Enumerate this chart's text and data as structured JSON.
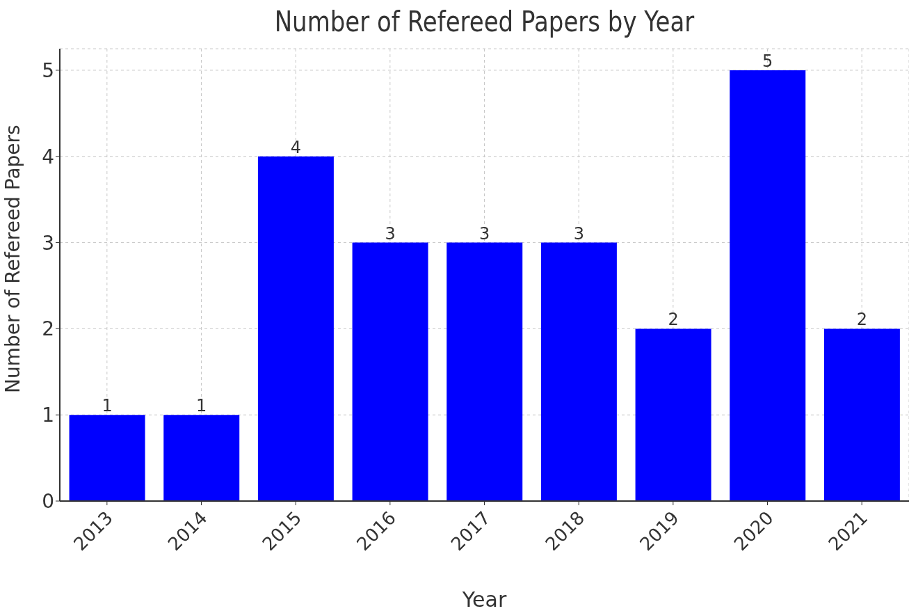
{
  "chart_data": {
    "type": "bar",
    "title": "Number of Refereed Papers by Year",
    "xlabel": "Year",
    "ylabel": "Number of Refereed Papers",
    "categories": [
      "2013",
      "2014",
      "2015",
      "2016",
      "2017",
      "2018",
      "2019",
      "2020",
      "2021"
    ],
    "values": [
      1,
      1,
      4,
      3,
      3,
      3,
      2,
      5,
      2
    ],
    "color": "#0000ff",
    "ylim": [
      0,
      5.25
    ],
    "yticks": [
      0,
      1,
      2,
      3,
      4,
      5
    ],
    "grid": true,
    "data_labels": true
  }
}
